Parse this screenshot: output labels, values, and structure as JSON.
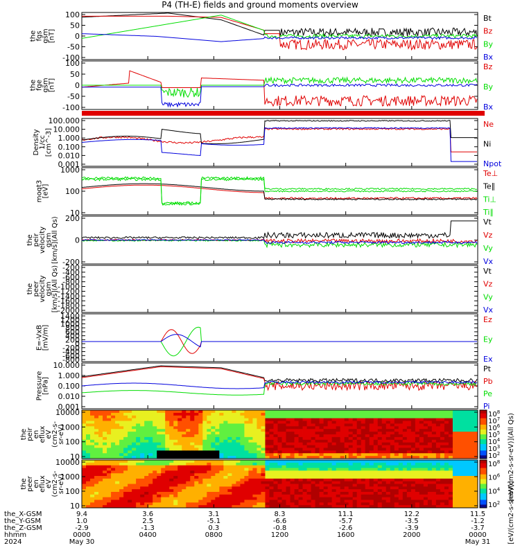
{
  "title": "P4 (TH-E) fields and ground moments overview",
  "colors": {
    "black": "#000000",
    "red": "#e00000",
    "green": "#00dd00",
    "blue": "#0000dd"
  },
  "chart_data": [
    {
      "type": "line",
      "ylabel": [
        "the",
        "fgs",
        "gsm",
        "[nT]"
      ],
      "yticks": [
        "100",
        "50",
        "0",
        "-50",
        "-100"
      ],
      "legend": [
        {
          "name": "Bt",
          "color": "black"
        },
        {
          "name": "Bz",
          "color": "red"
        },
        {
          "name": "By",
          "color": "green"
        },
        {
          "name": "Bx",
          "color": "blue"
        }
      ]
    },
    {
      "type": "line",
      "ylabel": [
        "the",
        "fge",
        "gsm",
        "[nT]"
      ],
      "yticks": [
        "100",
        "50",
        "0",
        "-50",
        "-100"
      ],
      "legend": [
        {
          "name": "Bz",
          "color": "red"
        },
        {
          "name": "By",
          "color": "green"
        },
        {
          "name": "Bx",
          "color": "blue"
        }
      ]
    },
    {
      "type": "line",
      "ylabel": [
        "Density",
        "1/cc",
        "[cm^-3]"
      ],
      "yticks": [
        "100.000",
        "10.000",
        "1.000",
        "0.100",
        "0.010",
        "0.001"
      ],
      "legend": [
        {
          "name": "Ne",
          "color": "red"
        },
        {
          "name": "Ni",
          "color": "black"
        },
        {
          "name": "Npot",
          "color": "blue"
        }
      ]
    },
    {
      "type": "line",
      "ylabel": [
        "moqt3",
        "[eV]"
      ],
      "yticks": [
        "1000",
        "100",
        "10"
      ],
      "legend": [
        {
          "name": "Te⊥",
          "color": "red"
        },
        {
          "name": "Te∥",
          "color": "black"
        },
        {
          "name": "Ti⊥",
          "color": "green"
        },
        {
          "name": "Ti∥",
          "color": "green"
        }
      ]
    },
    {
      "type": "line",
      "ylabel": [
        "the",
        "peir",
        "velocity",
        "gsm",
        "[km/s](All Qs)"
      ],
      "yticks": [
        "200",
        "0",
        "-200"
      ],
      "legend": [
        {
          "name": "Vt",
          "color": "black"
        },
        {
          "name": "Vz",
          "color": "red"
        },
        {
          "name": "Vy",
          "color": "green"
        },
        {
          "name": "Vx",
          "color": "blue"
        }
      ]
    },
    {
      "type": "line",
      "ylabel": [
        "the",
        "peer",
        "velocity",
        "gsm",
        "[km/s](All Qs)"
      ],
      "yticks": [
        "-200",
        "-400",
        "-600",
        "-800",
        "-1000",
        "-1200",
        "-1400",
        "-1600",
        "-1800",
        "-2000"
      ],
      "legend": [
        {
          "name": "Vt",
          "color": "black"
        },
        {
          "name": "Vz",
          "color": "red"
        },
        {
          "name": "Vy",
          "color": "green"
        },
        {
          "name": "Vx",
          "color": "blue"
        }
      ]
    },
    {
      "type": "line",
      "ylabel": [
        "E=-VxB",
        "[mV/m]"
      ],
      "yticks": [
        "1400",
        "1200",
        "1000",
        "800",
        "600",
        "400",
        "200",
        "0",
        "-200",
        "-400",
        "-600",
        "-800"
      ],
      "legend": [
        {
          "name": "Ez",
          "color": "red"
        },
        {
          "name": "Ey",
          "color": "green"
        },
        {
          "name": "Ex",
          "color": "blue"
        }
      ]
    },
    {
      "type": "line",
      "ylabel": [
        "Pressure",
        "[nPa]"
      ],
      "yticks": [
        "10.000",
        "1.000",
        "0.100",
        "0.010",
        "0.001"
      ],
      "legend": [
        {
          "name": "Pt",
          "color": "black"
        },
        {
          "name": "Pb",
          "color": "red"
        },
        {
          "name": "Pe",
          "color": "green"
        },
        {
          "name": "Pi",
          "color": "blue"
        }
      ]
    },
    {
      "type": "heatmap",
      "ylabel": [
        "the",
        "peir",
        "en",
        "eflux",
        "eV",
        "(cm2-s-",
        "sr-eV)"
      ],
      "yticks": [
        "10000",
        "1000",
        "100",
        "10"
      ],
      "colorbar_ticks": [
        "10^8",
        "10^7",
        "10^6",
        "10^5",
        "10^4",
        "10^3",
        "10^2"
      ],
      "colorbar_label": "[eV/(cm2-s-sr-eV)](All Qs)"
    },
    {
      "type": "heatmap",
      "ylabel": [
        "the",
        "peer",
        "en",
        "eflux",
        "eV",
        "(cm2-s-",
        "sr-eV)"
      ],
      "yticks": [
        "10000",
        "1000",
        "100",
        "10"
      ],
      "colorbar_ticks": [
        "10^8",
        "10^6",
        "10^4",
        "10^2"
      ],
      "colorbar_label": "[eV/(cm2-s-sr-eV)]"
    }
  ],
  "xaxis": {
    "ticks": [
      "0000",
      "0400",
      "0800",
      "1200",
      "1600",
      "2000",
      "0000"
    ],
    "rows": [
      {
        "label": "the_X-GSM",
        "values": [
          "9.4",
          "3.6",
          "3.1",
          "8.3",
          "11.1",
          "12.2",
          "11.5"
        ]
      },
      {
        "label": "the_Y-GSM",
        "values": [
          "1.0",
          "2.5",
          "-5.1",
          "-6.6",
          "-5.7",
          "-3.5",
          "-1.2"
        ]
      },
      {
        "label": "the_Z-GSM",
        "values": [
          "-2.9",
          "-1.3",
          "0.3",
          "-0.8",
          "-2.6",
          "-3.9",
          "-3.7"
        ]
      }
    ],
    "time_label": "hhmm",
    "year": "2024",
    "start_date": "May 30",
    "end_date": "May 31"
  }
}
